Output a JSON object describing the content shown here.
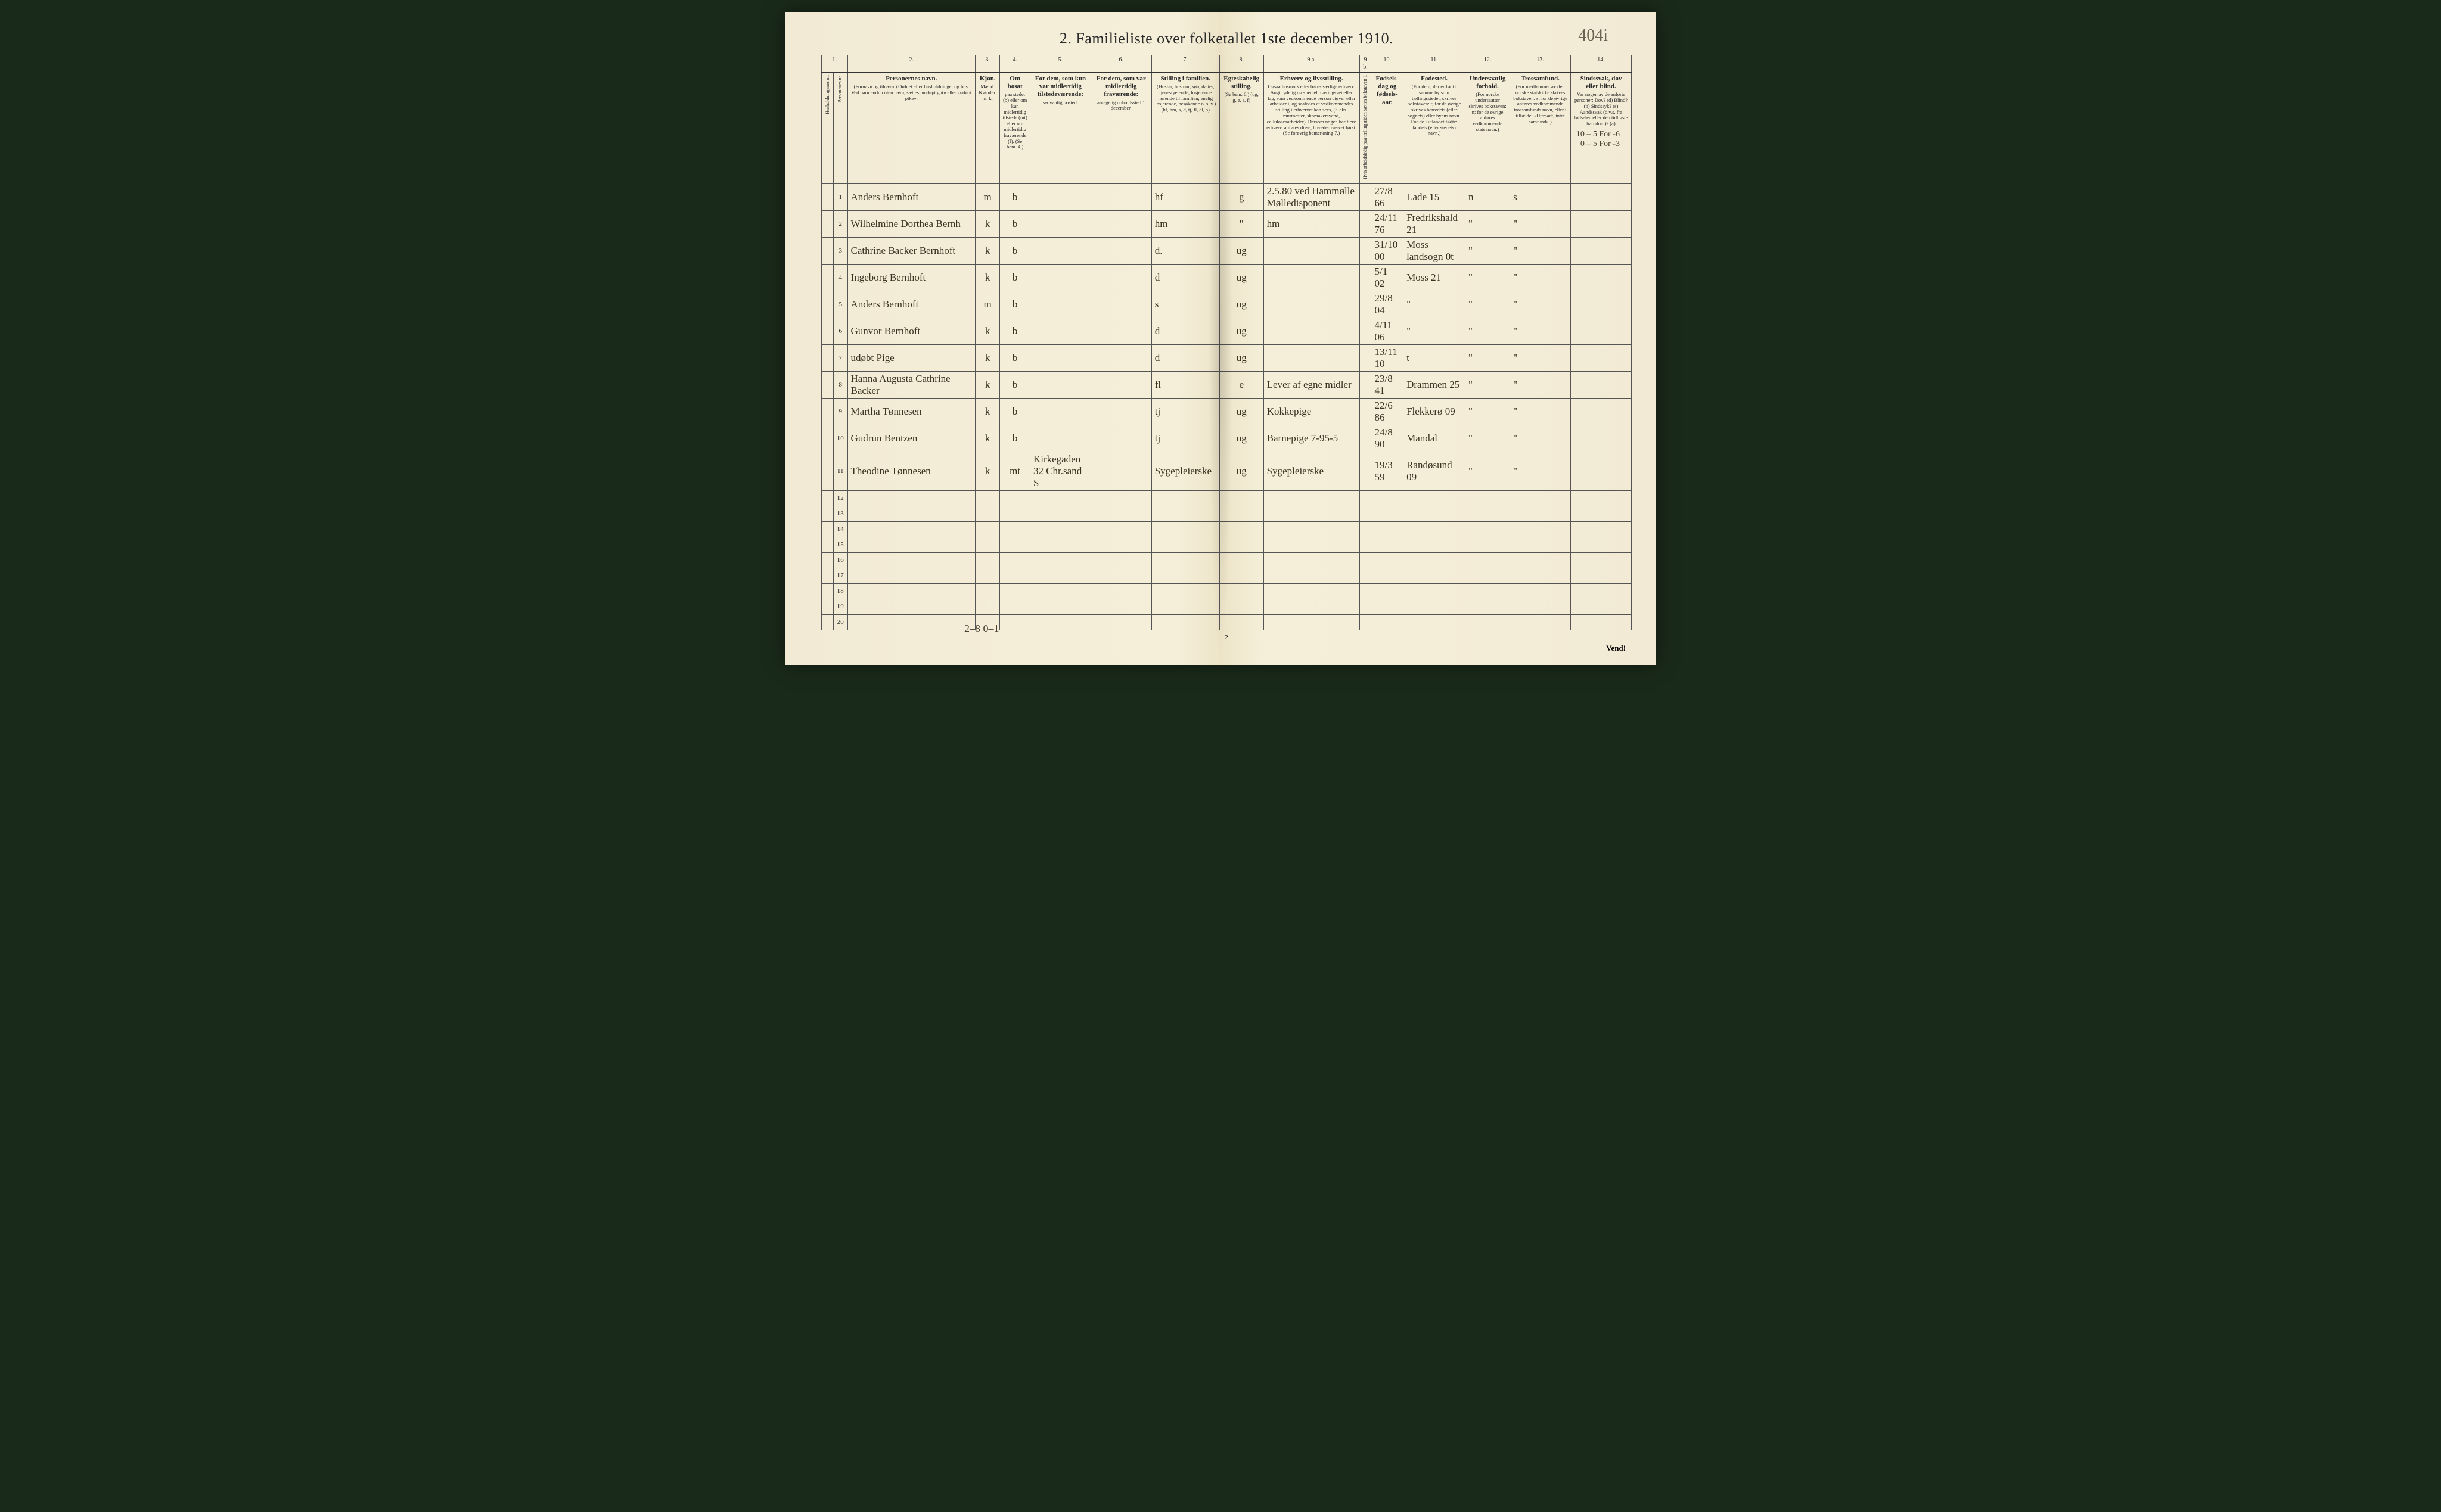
{
  "title": "2.  Familieliste over folketallet 1ste december 1910.",
  "page_annotation": "404i",
  "page_number": "2",
  "vend_label": "Vend!",
  "top_right_annot1": "10 – 5 For -6",
  "top_right_annot2": "0 – 5 For -3",
  "bottom_annot": "2–8  0–1",
  "columns": {
    "c1": "1.",
    "c2": "2.",
    "c3": "3.",
    "c4": "4.",
    "c5": "5.",
    "c6": "6.",
    "c7": "7.",
    "c8": "8.",
    "c9a": "9 a.",
    "c9b": "9 b.",
    "c10": "10.",
    "c11": "11.",
    "c12": "12.",
    "c13": "13.",
    "c14": "14."
  },
  "headers": {
    "h1": "Husholdningenes nr.",
    "h1b": "Personenes nr.",
    "h2_main": "Personernes navn.",
    "h2_sub": "(Fornavn og tilnavn.)\nOrdnet efter husholdninger og hus.\nVed barn endnu uten navn, sættes: «udøpt gut» eller «udøpt pike».",
    "h3_main": "Kjøn.",
    "h3_sub": "Mænd. Kvinder.\nm.  k.",
    "h4_main": "Om bosat",
    "h4_sub": "paa stedet (b) eller om kun midlertidig tilstede (mt) eller om midlertidig fraværende (f). (Se bem. 4.)",
    "h5_main": "For dem, som kun var midlertidig tilstedeværende:",
    "h5_sub": "sedvanlig bosted.",
    "h6_main": "For dem, som var midlertidig fraværende:",
    "h6_sub": "antagelig opholdssted 1 december.",
    "h7_main": "Stilling i familien.",
    "h7_sub": "(Husfar, husmor, søn, datter, tjenestyelende, losjerende hørende til familien, enslig losjerende, besøkende o. s. v.)\n(hf, hm, s, d, tj, fl, el, b)",
    "h8_main": "Egteskabelig stilling.",
    "h8_sub": "(Se bem. 6.)\n(ug, g, e, s, f)",
    "h9a_main": "Erhverv og livsstilling.",
    "h9a_sub": "Ogsaa husmors eller barns særlige erhverv. Angi tydelig og specielt næringsvei eller fag, som vedkommende person utøver eller arbeider i, og saaledes at vedkommendes stilling i erhvervet kan sees, (f. eks. murmester, skomakersvend, celluloseaarbeider). Dersom nogen har flere erhverv, anføres disse, hovederhvervet først. (Se forøvrig bemerkning 7.)",
    "h9b": "Hvis arbeidsledig paa tællingstiden sættes bokstaven l.",
    "h10_main": "Fødsels-dag og fødsels-aar.",
    "h11_main": "Fødested.",
    "h11_sub": "(For dem, der er født i samme by som tællingsstedet, skrives bokstaven: t; for de øvrige skrives herredets (eller sognets) eller byens navn. For de i utlandet fødte: landets (eller stedets) navn.)",
    "h12_main": "Undersaatlig forhold.",
    "h12_sub": "(For norske undersaatter skrives bokstaven: n; for de øvrige anføres vedkommende stats navn.)",
    "h13_main": "Trossamfund.",
    "h13_sub": "(For medlemmer av den norske statskirke skrives bokstaven: s; for de øvrige anføres vedkommende trossamfunds navn, eller i tilfælde: «Uttraadt, intet samfund».)",
    "h14_main": "Sindssvak, døv eller blind.",
    "h14_sub": "Var nogen av de anførte personer:\nDøv? (d)\nBlind? (b)\nSindssyk? (s)\nAandssvak (d.v.s. fra fødselen eller den tidligste barndom)? (a)"
  },
  "rows": [
    {
      "n": "1",
      "name": "Anders Bernhoft",
      "g": "m",
      "b": "b",
      "stil": "hf",
      "eg": "g",
      "occ": "2.5.80 ved Hammølle\nMølledisponent",
      "dob": "27/8 66",
      "birthplace": "Lade 15",
      "nat": "n",
      "rel": "s"
    },
    {
      "n": "2",
      "name": "Wilhelmine Dorthea Bernh",
      "g": "k",
      "b": "b",
      "stil": "hm",
      "eg": "\"",
      "occ": "hm",
      "dob": "24/11 76",
      "birthplace": "Fredrikshald 21",
      "nat": "\"",
      "rel": "\""
    },
    {
      "n": "3",
      "name": "Cathrine Backer Bernhoft",
      "g": "k",
      "b": "b",
      "stil": "d.",
      "eg": "ug",
      "occ": "",
      "dob": "31/10 00",
      "birthplace": "Moss landsogn 0t",
      "nat": "\"",
      "rel": "\""
    },
    {
      "n": "4",
      "name": "Ingeborg Bernhoft",
      "g": "k",
      "b": "b",
      "stil": "d",
      "eg": "ug",
      "occ": "",
      "dob": "5/1 02",
      "birthplace": "Moss 21",
      "nat": "\"",
      "rel": "\""
    },
    {
      "n": "5",
      "name": "Anders Bernhoft",
      "g": "m",
      "b": "b",
      "stil": "s",
      "eg": "ug",
      "occ": "",
      "dob": "29/8 04",
      "birthplace": "\"",
      "nat": "\"",
      "rel": "\""
    },
    {
      "n": "6",
      "name": "Gunvor Bernhoft",
      "g": "k",
      "b": "b",
      "stil": "d",
      "eg": "ug",
      "occ": "",
      "dob": "4/11 06",
      "birthplace": "\"",
      "nat": "\"",
      "rel": "\""
    },
    {
      "n": "7",
      "name": "udøbt Pige",
      "g": "k",
      "b": "b",
      "stil": "d",
      "eg": "ug",
      "occ": "",
      "dob": "13/11 10",
      "birthplace": "t",
      "nat": "\"",
      "rel": "\""
    },
    {
      "n": "8",
      "name": "Hanna Augusta Cathrine Backer",
      "g": "k",
      "b": "b",
      "stil": "fl",
      "eg": "e",
      "occ": "Lever af egne midler",
      "dob": "23/8 41",
      "birthplace": "Drammen 25",
      "nat": "\"",
      "rel": "\""
    },
    {
      "n": "9",
      "name": "Martha Tønnesen",
      "g": "k",
      "b": "b",
      "stil": "tj",
      "eg": "ug",
      "occ": "Kokkepige",
      "dob": "22/6 86",
      "birthplace": "Flekkerø 09",
      "nat": "\"",
      "rel": "\""
    },
    {
      "n": "10",
      "name": "Gudrun Bentzen",
      "g": "k",
      "b": "b",
      "stil": "tj",
      "eg": "ug",
      "occ": "Barnepige        7-95-5",
      "dob": "24/8 90",
      "birthplace": "Mandal",
      "nat": "\"",
      "rel": "\""
    },
    {
      "n": "11",
      "name": "Theodine Tønnesen",
      "g": "k",
      "b": "mt",
      "frav": "Kirkegaden 32\nChr.sand S",
      "stil": "Sygepleierske",
      "eg": "ug",
      "occ": "Sygepleierske",
      "dob": "19/3 59",
      "birthplace": "Randøsund 09",
      "nat": "\"",
      "rel": "\""
    }
  ],
  "empty_rows": [
    12,
    13,
    14,
    15,
    16,
    17,
    18,
    19,
    20
  ],
  "colors": {
    "paper": "#f2ead4",
    "ink": "#2a2a2a",
    "handwriting": "#3a3320",
    "pencil": "#6b6455",
    "border": "#555"
  }
}
